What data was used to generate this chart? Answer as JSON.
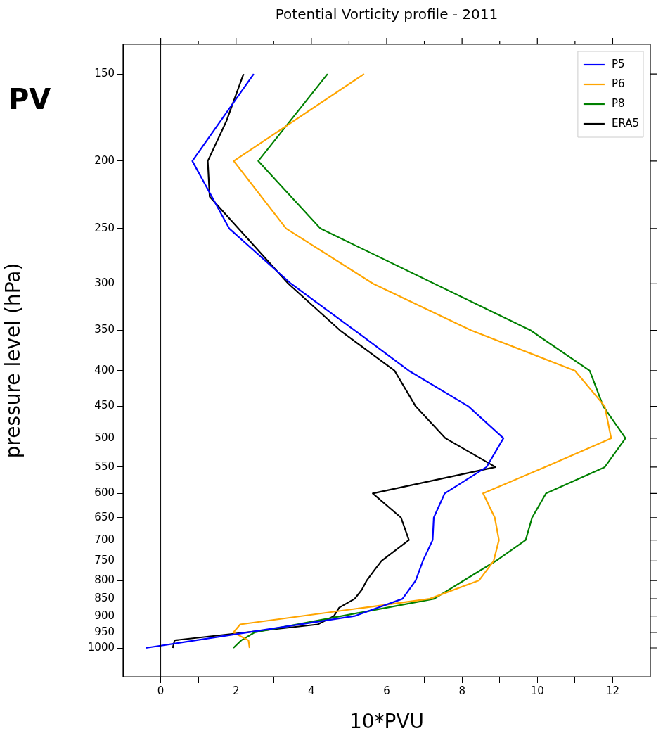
{
  "chart_data": {
    "type": "line",
    "title": "Potential Vorticity profile - 2011",
    "xlabel": "10*PVU",
    "ylabel": "pressure level (hPa)",
    "annotations": [
      "PV"
    ],
    "log": "y",
    "legend": "top right",
    "xlim": [
      -1,
      13
    ],
    "xticks": [
      0,
      {
        "value": 1,
        "label": null
      },
      2,
      {
        "value": 3,
        "label": null
      },
      4,
      {
        "value": 5,
        "label": null
      },
      6,
      {
        "value": 7,
        "label": null
      },
      8,
      {
        "value": 9,
        "label": null
      },
      10,
      {
        "value": 11,
        "label": null
      },
      12
    ],
    "ylim": [
      1100,
      136
    ],
    "yticks": [
      150,
      200,
      250,
      300,
      350,
      400,
      450,
      500,
      550,
      600,
      650,
      700,
      750,
      800,
      850,
      900,
      950,
      1000
    ],
    "ref_lines": [
      {
        "axis": "x",
        "value": 0,
        "color": "#000000"
      }
    ],
    "series": [
      {
        "name": "P5",
        "color": "#0000ff",
        "x": [
          2.47,
          0.84,
          1.82,
          3.46,
          5.15,
          6.59,
          8.17,
          9.1,
          8.65,
          7.54,
          7.25,
          7.22,
          6.96,
          6.77,
          6.42,
          5.15,
          -0.4
        ],
        "values": [
          150,
          200,
          250,
          300,
          350,
          400,
          450,
          500,
          550,
          600,
          650,
          700,
          750,
          800,
          850,
          900,
          1000
        ]
      },
      {
        "name": "P6",
        "color": "#ffa500",
        "x": [
          5.4,
          1.94,
          3.33,
          5.64,
          8.24,
          11.0,
          11.79,
          11.96,
          10.2,
          8.56,
          8.87,
          8.98,
          8.84,
          8.45,
          7.14,
          2.11,
          1.93,
          2.33,
          2.36
        ],
        "values": [
          150,
          200,
          250,
          300,
          350,
          400,
          450,
          500,
          550,
          600,
          650,
          700,
          750,
          800,
          850,
          925,
          950,
          975,
          1000
        ]
      },
      {
        "name": "P8",
        "color": "#008000",
        "x": [
          4.43,
          2.59,
          4.24,
          9.82,
          11.39,
          11.75,
          12.34,
          11.79,
          10.23,
          9.86,
          9.69,
          8.9,
          8.05,
          7.26,
          2.49,
          2.14,
          1.93
        ],
        "values": [
          150,
          200,
          250,
          350,
          400,
          450,
          500,
          550,
          600,
          650,
          700,
          750,
          800,
          850,
          950,
          975,
          1000
        ]
      },
      {
        "name": "ERA5",
        "color": "#000000",
        "x": [
          2.2,
          1.75,
          1.25,
          1.3,
          3.39,
          4.76,
          6.21,
          6.77,
          7.56,
          8.89,
          5.63,
          6.38,
          6.59,
          5.86,
          5.66,
          5.47,
          5.34,
          5.15,
          4.74,
          4.6,
          4.17,
          0.37,
          0.32
        ],
        "values": [
          150,
          175,
          200,
          225,
          300,
          350,
          400,
          450,
          500,
          550,
          600,
          650,
          700,
          750,
          775,
          800,
          825,
          850,
          875,
          900,
          925,
          975,
          1000
        ]
      }
    ]
  }
}
